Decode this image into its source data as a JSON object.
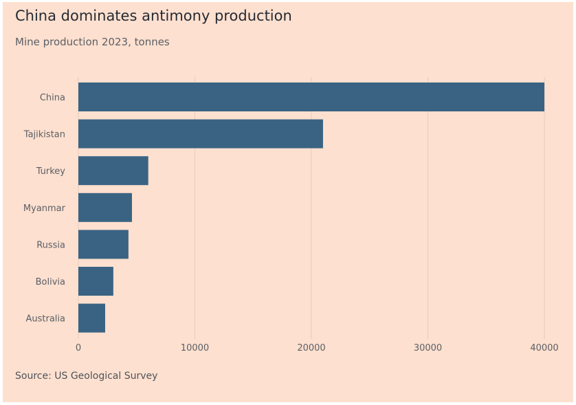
{
  "header": {
    "title": "China dominates antimony production",
    "subtitle": "Mine production 2023, tonnes"
  },
  "footer": {
    "source": "Source: US Geological Survey"
  },
  "colors": {
    "bar": "#3a6383",
    "background": "#fde0cf",
    "grid": "#e3ccbf"
  },
  "chart_data": {
    "type": "bar",
    "orientation": "horizontal",
    "categories": [
      "China",
      "Tajikistan",
      "Turkey",
      "Myanmar",
      "Russia",
      "Bolivia",
      "Australia"
    ],
    "values": [
      40000,
      21000,
      6000,
      4600,
      4300,
      3000,
      2300
    ],
    "xlabel": "",
    "ylabel": "",
    "xlim": [
      0,
      40000
    ],
    "xticks": [
      0,
      10000,
      20000,
      30000,
      40000
    ],
    "grid": "vertical"
  }
}
